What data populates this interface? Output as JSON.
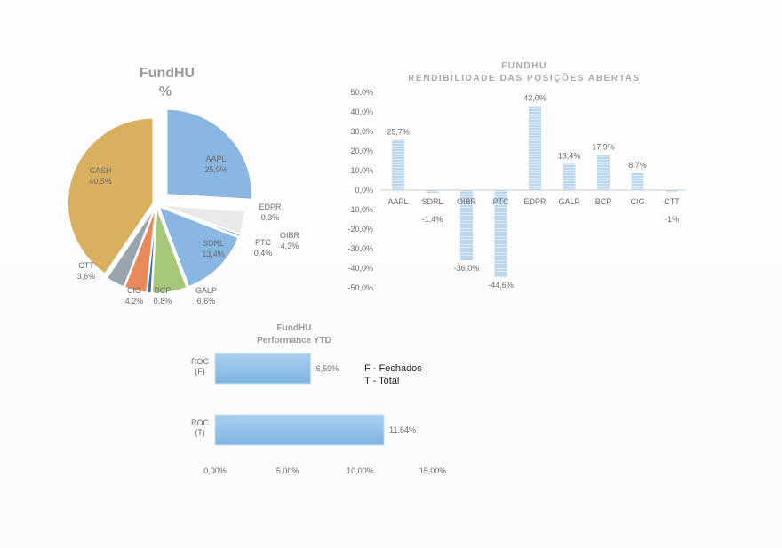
{
  "chart_data": [
    {
      "type": "pie",
      "title": "FundHU",
      "subtitle": "%",
      "slices": [
        {
          "label": "AAPL",
          "value_text": "25,9%",
          "value": 25.9,
          "color": "#8ab6e2"
        },
        {
          "label": "EDPR",
          "value_text": "0,3%",
          "value": 0.3,
          "color": "#e8c878"
        },
        {
          "label": "OIBR",
          "value_text": "4,3%",
          "value": 4.3,
          "color": "#eaeaea"
        },
        {
          "label": "PTC",
          "value_text": "0,4%",
          "value": 0.4,
          "color": "#5a8fc8"
        },
        {
          "label": "SDRL",
          "value_text": "13,4%",
          "value": 13.4,
          "color": "#8ab6e2"
        },
        {
          "label": "GALP",
          "value_text": "6,6%",
          "value": 6.6,
          "color": "#a6c878"
        },
        {
          "label": "BCP",
          "value_text": "0,8%",
          "value": 0.8,
          "color": "#3f6fb0"
        },
        {
          "label": "CIG",
          "value_text": "4,2%",
          "value": 4.2,
          "color": "#e88a5a"
        },
        {
          "label": "CTT",
          "value_text": "3,6%",
          "value": 3.6,
          "color": "#9aa4ac"
        },
        {
          "label": "CASH",
          "value_text": "40,5%",
          "value": 40.5,
          "color": "#d8b060"
        }
      ]
    },
    {
      "type": "bar",
      "title": "FUNDHU",
      "subtitle": "RENDIBILIDADE DAS POSIÇÕES ABERTAS",
      "categories": [
        "AAPL",
        "SDRL",
        "OIBR",
        "PTC",
        "EDPR",
        "GALP",
        "BCP",
        "CIG",
        "CTT"
      ],
      "values": [
        25.7,
        -1.4,
        -36.0,
        -44.6,
        43.0,
        13.4,
        17.9,
        8.7,
        -1.0
      ],
      "value_labels": [
        "25,7%",
        "-1,4%",
        "-36,0%",
        "-44,6%",
        "43,0%",
        "13,4%",
        "17,9%",
        "8,7%",
        "-1%"
      ],
      "yticks": [
        "50,0%",
        "40,0%",
        "30,0%",
        "20,0%",
        "10,0%",
        "0,0%",
        "-10,0%",
        "-20,0%",
        "-30,0%",
        "-40,0%",
        "-50,0%"
      ],
      "ylim": [
        -50,
        50
      ],
      "bar_color": "#a9cdea"
    },
    {
      "type": "bar",
      "orientation": "horizontal",
      "title": "FundHU",
      "subtitle": "Performance YTD",
      "categories": [
        [
          "ROC",
          "(F)"
        ],
        [
          "ROC",
          "(T)"
        ]
      ],
      "values": [
        6.59,
        11.64
      ],
      "value_labels": [
        "6,59%",
        "11,64%"
      ],
      "xticks": [
        "0,00%",
        "5,00%",
        "10,00%",
        "15,00%"
      ],
      "xlim": [
        0,
        15
      ],
      "bar_color": "#8fc0e8",
      "legend_notes": [
        "F - Fechados",
        "T - Total"
      ]
    }
  ]
}
